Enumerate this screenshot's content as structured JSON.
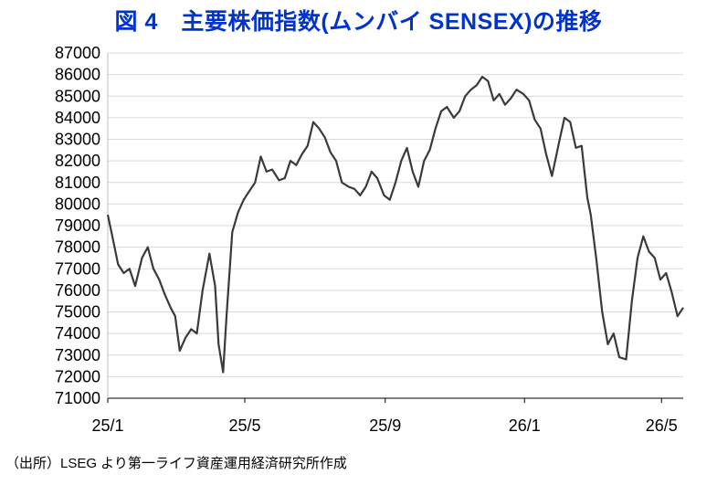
{
  "title": "図 4　主要株価指数(ムンバイ SENSEX)の推移",
  "source": "（出所）LSEG より第一ライフ資産運用経済研究所作成",
  "colors": {
    "title": "#0033cc",
    "line": "#3a3a3a",
    "grid": "#d9d9d9",
    "axis": "#000000"
  },
  "chart_data": {
    "type": "line",
    "title": "図 4　主要株価指数(ムンバイ SENSEX)の推移",
    "xlabel": "",
    "ylabel": "",
    "ylim": [
      71000,
      87000
    ],
    "ytick_step": 1000,
    "grid": true,
    "legend": "none",
    "x_tick_labels": [
      "25/1",
      "25/5",
      "25/9",
      "26/1",
      "26/5"
    ],
    "x_tick_dates": [
      "2025-01-01",
      "2025-05-01",
      "2025-09-01",
      "2026-01-01",
      "2026-05-01"
    ],
    "x_range": [
      "2025-01-01",
      "2026-05-20"
    ],
    "series": [
      {
        "x": [
          "2025-01-01",
          "2025-01-05",
          "2025-01-10",
          "2025-01-15",
          "2025-01-20",
          "2025-01-25",
          "2025-01-31",
          "2025-02-05",
          "2025-02-10",
          "2025-02-15",
          "2025-02-20",
          "2025-02-25",
          "2025-03-01",
          "2025-03-05",
          "2025-03-10",
          "2025-03-15",
          "2025-03-20",
          "2025-03-25",
          "2025-03-31",
          "2025-04-05",
          "2025-04-08",
          "2025-04-12",
          "2025-04-15",
          "2025-04-20",
          "2025-04-25",
          "2025-04-30",
          "2025-05-05",
          "2025-05-10",
          "2025-05-15",
          "2025-05-20",
          "2025-05-25",
          "2025-05-31",
          "2025-06-05",
          "2025-06-10",
          "2025-06-15",
          "2025-06-20",
          "2025-06-25",
          "2025-06-30",
          "2025-07-05",
          "2025-07-10",
          "2025-07-15",
          "2025-07-20",
          "2025-07-25",
          "2025-07-31",
          "2025-08-05",
          "2025-08-10",
          "2025-08-15",
          "2025-08-20",
          "2025-08-25",
          "2025-08-31",
          "2025-09-05",
          "2025-09-10",
          "2025-09-15",
          "2025-09-20",
          "2025-09-25",
          "2025-09-30",
          "2025-10-05",
          "2025-10-10",
          "2025-10-15",
          "2025-10-20",
          "2025-10-25",
          "2025-10-31",
          "2025-11-05",
          "2025-11-10",
          "2025-11-15",
          "2025-11-20",
          "2025-11-25",
          "2025-11-30",
          "2025-12-05",
          "2025-12-10",
          "2025-12-15",
          "2025-12-20",
          "2025-12-25",
          "2025-12-31",
          "2026-01-05",
          "2026-01-10",
          "2026-01-15",
          "2026-01-20",
          "2026-01-25",
          "2026-01-31",
          "2026-02-05",
          "2026-02-10",
          "2026-02-15",
          "2026-02-20",
          "2026-02-25",
          "2026-02-28",
          "2026-03-05",
          "2026-03-10",
          "2026-03-15",
          "2026-03-20",
          "2026-03-25",
          "2026-03-31",
          "2026-04-05",
          "2026-04-10",
          "2026-04-15",
          "2026-04-20",
          "2026-04-25",
          "2026-04-30",
          "2026-05-05",
          "2026-05-10",
          "2026-05-15",
          "2026-05-20"
        ],
        "values": [
          79500,
          78500,
          77200,
          76800,
          77000,
          76200,
          77500,
          78000,
          77000,
          76500,
          75800,
          75200,
          74800,
          73200,
          73800,
          74200,
          74000,
          76000,
          77700,
          76200,
          73500,
          72200,
          74800,
          78700,
          79600,
          80200,
          80600,
          81000,
          82200,
          81500,
          81600,
          81100,
          81200,
          82000,
          81800,
          82300,
          82700,
          83800,
          83500,
          83100,
          82400,
          82000,
          81000,
          80800,
          80700,
          80400,
          80800,
          81500,
          81200,
          80400,
          80200,
          81000,
          82000,
          82600,
          81500,
          80800,
          82000,
          82500,
          83500,
          84300,
          84500,
          84000,
          84300,
          85000,
          85300,
          85500,
          85900,
          85700,
          84800,
          85100,
          84600,
          84900,
          85300,
          85100,
          84800,
          83900,
          83500,
          82300,
          81300,
          82800,
          84000,
          83800,
          82600,
          82700,
          80300,
          79500,
          77400,
          75000,
          73500,
          74000,
          72900,
          72800,
          75500,
          77500,
          78500,
          77800,
          77500,
          76500,
          76800,
          75900,
          74800,
          75200
        ]
      }
    ]
  }
}
